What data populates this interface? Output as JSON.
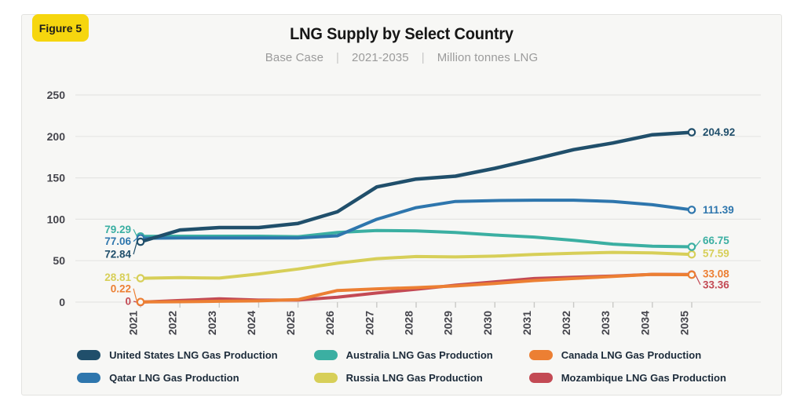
{
  "figure_label": "Figure 5",
  "header": {
    "title": "LNG Supply by Select Country",
    "subtitle_parts": [
      "Base Case",
      "2021-2035",
      "Million tonnes LNG"
    ],
    "separator": "|"
  },
  "colors": {
    "badge_bg": "#f6d60e",
    "axis_text": "#45454c",
    "grid_line": "#e6e6e3",
    "tick_mark": "#c9c9c6",
    "card_bg": "#f7f7f5",
    "legend_text": "#1c2b3a"
  },
  "chart_data": {
    "type": "line",
    "title": "LNG Supply by Select Country",
    "subtitle": "Base Case | 2021-2035 | Million tonnes LNG",
    "units": "Million tonnes LNG",
    "x": [
      "2021",
      "2022",
      "2023",
      "2024",
      "2025",
      "2026",
      "2027",
      "2028",
      "2029",
      "2030",
      "2031",
      "2032",
      "2033",
      "2034",
      "2035"
    ],
    "ylim": [
      0,
      250
    ],
    "y_ticks": [
      0,
      50,
      100,
      150,
      200,
      250
    ],
    "grid": "horizontal-only",
    "legend_position": "bottom",
    "series": [
      {
        "name": "United States LNG Gas Production",
        "color": "#204f6b",
        "values": [
          72.84,
          87,
          90,
          90,
          95,
          109,
          139,
          148.5,
          152,
          161.5,
          172.5,
          184,
          192,
          202,
          204.92
        ],
        "first_label": "72.84",
        "last_label": "204.92"
      },
      {
        "name": "Qatar LNG Gas Production",
        "color": "#2e76ad",
        "values": [
          77.06,
          77.5,
          77.5,
          77.5,
          77.5,
          80,
          100,
          114,
          121.5,
          122.5,
          123,
          123,
          121.5,
          117.5,
          111.39
        ],
        "first_label": "77.06",
        "last_label": "111.39"
      },
      {
        "name": "Australia LNG Gas Production",
        "color": "#3bafa2",
        "values": [
          79.29,
          79.5,
          79.5,
          79.5,
          79,
          84,
          86.5,
          86,
          84,
          81,
          78.5,
          74.5,
          70,
          67.5,
          66.75
        ],
        "first_label": "79.29",
        "last_label": "66.75"
      },
      {
        "name": "Russia LNG Gas Production",
        "color": "#d7cf58",
        "values": [
          28.81,
          29.5,
          29,
          34,
          40,
          47,
          52.5,
          55,
          54.5,
          55.5,
          57.5,
          59,
          60,
          59.5,
          57.59
        ],
        "first_label": "28.81",
        "last_label": "57.59"
      },
      {
        "name": "Canada LNG Gas Production",
        "color": "#ec7f33",
        "values": [
          0.22,
          0.5,
          1,
          1.5,
          3,
          14,
          16,
          17.5,
          19.5,
          22.5,
          26,
          28.5,
          31,
          33.5,
          33.08
        ],
        "first_label": "0.22",
        "last_label": "33.08"
      },
      {
        "name": "Mozambique LNG Gas Production",
        "color": "#c34a54",
        "values": [
          0,
          2,
          4,
          2.5,
          2.5,
          6,
          11,
          15.5,
          20.5,
          24.5,
          28.5,
          30,
          31.5,
          33.5,
          33.36
        ],
        "first_label": "0",
        "last_label": "33.36"
      }
    ],
    "legend_columns": [
      [
        "United States LNG Gas Production",
        "Qatar LNG Gas Production"
      ],
      [
        "Australia LNG Gas Production",
        "Russia LNG Gas Production"
      ],
      [
        "Canada LNG Gas Production",
        "Mozambique LNG Gas Production"
      ]
    ]
  }
}
